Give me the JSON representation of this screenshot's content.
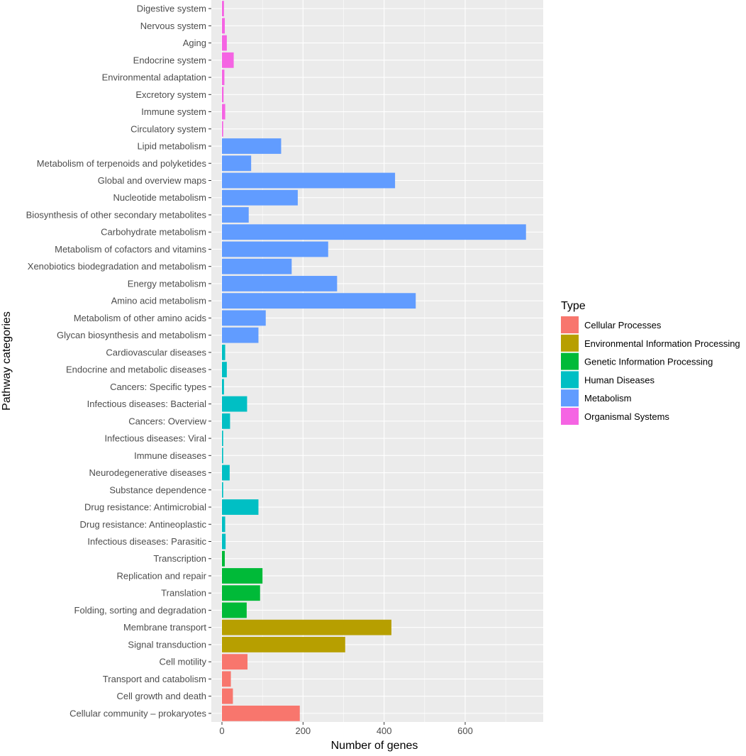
{
  "chart_data": {
    "type": "bar",
    "orientation": "horizontal",
    "xlabel": "Number of genes",
    "ylabel": "Pathway categories",
    "xlim": [
      -25,
      790
    ],
    "xticks": [
      0,
      200,
      400,
      600
    ],
    "grid": true,
    "legend": {
      "title": "Type",
      "position": "right",
      "entries": [
        {
          "label": "Cellular Processes",
          "color": "#F8766D"
        },
        {
          "label": "Environmental Information Processing",
          "color": "#B79F00"
        },
        {
          "label": "Genetic Information Processing",
          "color": "#00BA38"
        },
        {
          "label": "Human Diseases",
          "color": "#00BFC4"
        },
        {
          "label": "Metabolism",
          "color": "#619CFF"
        },
        {
          "label": "Organismal Systems",
          "color": "#F564E3"
        }
      ]
    },
    "categories": [
      "Digestive system",
      "Nervous system",
      "Aging",
      "Endocrine system",
      "Environmental adaptation",
      "Excretory system",
      "Immune system",
      "Circulatory system",
      "Lipid metabolism",
      "Metabolism of terpenoids and polyketides",
      "Global and overview maps",
      "Nucleotide metabolism",
      "Biosynthesis of other secondary metabolites",
      "Carbohydrate metabolism",
      "Metabolism of cofactors and vitamins",
      "Xenobiotics biodegradation and metabolism",
      "Energy metabolism",
      "Amino acid metabolism",
      "Metabolism of other amino acids",
      "Glycan biosynthesis and metabolism",
      "Cardiovascular diseases",
      "Endocrine and metabolic diseases",
      "Cancers: Specific types",
      "Infectious diseases: Bacterial",
      "Cancers: Overview",
      "Infectious diseases: Viral",
      "Immune diseases",
      "Neurodegenerative diseases",
      "Substance dependence",
      "Drug resistance: Antimicrobial",
      "Drug resistance: Antineoplastic",
      "Infectious diseases: Parasitic",
      "Transcription",
      "Replication and repair",
      "Translation",
      "Folding, sorting and degradation",
      "Membrane transport",
      "Signal transduction",
      "Cell motility",
      "Transport and catabolism",
      "Cell growth and death",
      "Cellular community – prokaryotes"
    ],
    "values": [
      5,
      7,
      12,
      29,
      6,
      4,
      8,
      3,
      146,
      72,
      427,
      187,
      66,
      750,
      262,
      172,
      284,
      478,
      108,
      90,
      8,
      12,
      5,
      62,
      20,
      3,
      3,
      19,
      3,
      90,
      8,
      9,
      7,
      100,
      94,
      61,
      418,
      304,
      63,
      22,
      27,
      192
    ],
    "types": [
      "Organismal Systems",
      "Organismal Systems",
      "Organismal Systems",
      "Organismal Systems",
      "Organismal Systems",
      "Organismal Systems",
      "Organismal Systems",
      "Organismal Systems",
      "Metabolism",
      "Metabolism",
      "Metabolism",
      "Metabolism",
      "Metabolism",
      "Metabolism",
      "Metabolism",
      "Metabolism",
      "Metabolism",
      "Metabolism",
      "Metabolism",
      "Metabolism",
      "Human Diseases",
      "Human Diseases",
      "Human Diseases",
      "Human Diseases",
      "Human Diseases",
      "Human Diseases",
      "Human Diseases",
      "Human Diseases",
      "Human Diseases",
      "Human Diseases",
      "Human Diseases",
      "Human Diseases",
      "Genetic Information Processing",
      "Genetic Information Processing",
      "Genetic Information Processing",
      "Genetic Information Processing",
      "Environmental Information Processing",
      "Environmental Information Processing",
      "Cellular Processes",
      "Cellular Processes",
      "Cellular Processes",
      "Cellular Processes"
    ]
  }
}
